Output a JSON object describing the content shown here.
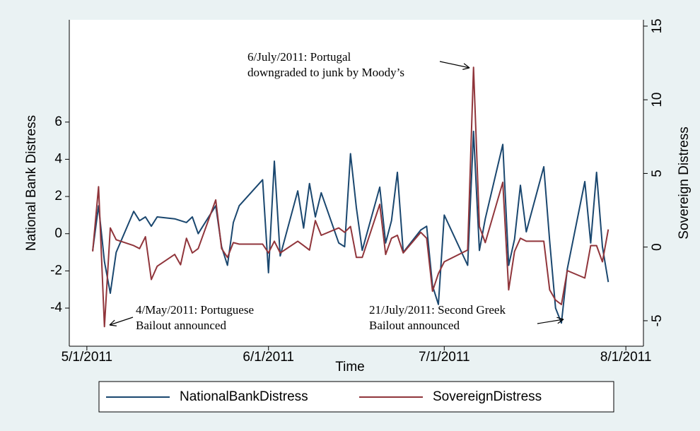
{
  "chart_data": {
    "type": "line",
    "x_label": "Time",
    "y_label": "National Bank Distress",
    "y2_label": "Sovereign Distress",
    "x": [
      "2011-05-02",
      "2011-05-03",
      "2011-05-04",
      "2011-05-05",
      "2011-05-06",
      "2011-05-09",
      "2011-05-10",
      "2011-05-11",
      "2011-05-12",
      "2011-05-13",
      "2011-05-16",
      "2011-05-17",
      "2011-05-18",
      "2011-05-19",
      "2011-05-20",
      "2011-05-23",
      "2011-05-24",
      "2011-05-25",
      "2011-05-26",
      "2011-05-27",
      "2011-05-31",
      "2011-06-01",
      "2011-06-02",
      "2011-06-03",
      "2011-06-06",
      "2011-06-07",
      "2011-06-08",
      "2011-06-09",
      "2011-06-10",
      "2011-06-13",
      "2011-06-14",
      "2011-06-15",
      "2011-06-16",
      "2011-06-17",
      "2011-06-20",
      "2011-06-21",
      "2011-06-22",
      "2011-06-23",
      "2011-06-24",
      "2011-06-27",
      "2011-06-28",
      "2011-06-29",
      "2011-06-30",
      "2011-07-01",
      "2011-07-05",
      "2011-07-06",
      "2011-07-07",
      "2011-07-08",
      "2011-07-11",
      "2011-07-12",
      "2011-07-13",
      "2011-07-14",
      "2011-07-15",
      "2011-07-18",
      "2011-07-19",
      "2011-07-20",
      "2011-07-21",
      "2011-07-22",
      "2011-07-25",
      "2011-07-26",
      "2011-07-27",
      "2011-07-28",
      "2011-07-29"
    ],
    "series": [
      {
        "name": "NationalBankDistress",
        "color": "#1a476f",
        "axis": "y",
        "values": [
          -0.9,
          1.5,
          -1.5,
          -3.2,
          -1.0,
          1.2,
          0.7,
          0.9,
          0.4,
          0.9,
          0.8,
          0.7,
          0.6,
          0.9,
          0.0,
          1.5,
          -0.7,
          -1.7,
          0.6,
          1.5,
          2.9,
          -2.1,
          3.9,
          -1.2,
          2.3,
          0.3,
          2.7,
          0.9,
          2.2,
          -0.5,
          -0.7,
          4.3,
          1.4,
          -0.9,
          2.5,
          -0.5,
          0.7,
          3.3,
          -1.0,
          0.2,
          0.4,
          -2.8,
          -3.8,
          1.0,
          -1.7,
          5.5,
          -0.9,
          0.8,
          4.8,
          -1.7,
          -0.3,
          2.6,
          0.1,
          3.6,
          -0.4,
          -4.0,
          -4.8,
          -1.9,
          2.8,
          -0.5,
          3.3,
          -0.7,
          -2.6
        ]
      },
      {
        "name": "SovereignDistress",
        "color": "#90353b",
        "axis": "y2",
        "values": [
          -0.3,
          4.1,
          -5.4,
          1.3,
          0.5,
          0.1,
          -0.1,
          0.7,
          -2.2,
          -1.3,
          -0.5,
          -1.2,
          0.6,
          -0.4,
          -0.1,
          3.2,
          -0.1,
          -0.7,
          0.3,
          0.2,
          0.2,
          -0.4,
          0.4,
          -0.4,
          0.4,
          0.1,
          -0.2,
          1.8,
          0.8,
          1.3,
          1.0,
          1.4,
          -0.7,
          -0.7,
          2.9,
          -0.5,
          0.6,
          0.8,
          -0.4,
          1.0,
          0.6,
          -3.0,
          -1.8,
          -1.0,
          -0.2,
          12.2,
          1.4,
          0.3,
          4.4,
          -2.9,
          -0.3,
          0.6,
          0.4,
          0.4,
          -2.9,
          -3.6,
          -3.9,
          -1.6,
          -2.1,
          0.1,
          0.1,
          -1.0,
          1.2
        ]
      }
    ],
    "xlim": [
      "2011-04-28",
      "2011-08-04"
    ],
    "xticks": [
      {
        "value": "2011-05-01",
        "label": "5/1/2011"
      },
      {
        "value": "2011-06-01",
        "label": "6/1/2011"
      },
      {
        "value": "2011-07-01",
        "label": "7/1/2011"
      },
      {
        "value": "2011-08-01",
        "label": "8/1/2011"
      }
    ],
    "ylim": [
      -6.05,
      11.5
    ],
    "yticks": [
      -4,
      -2,
      0,
      2,
      4,
      6
    ],
    "y2lim": [
      -6.73,
      15.43
    ],
    "y2ticks": [
      -5,
      0,
      5,
      10,
      15
    ],
    "annotations": [
      {
        "lines": [
          "6/July/2011:  Portugal",
          "downgraded to junk by Moody’s"
        ]
      },
      {
        "lines": [
          "4/May/2011:  Portuguese",
          "Bailout announced"
        ]
      },
      {
        "lines": [
          "21/July/2011:  Second Greek",
          "Bailout announced"
        ]
      }
    ],
    "legend": "bottom"
  }
}
